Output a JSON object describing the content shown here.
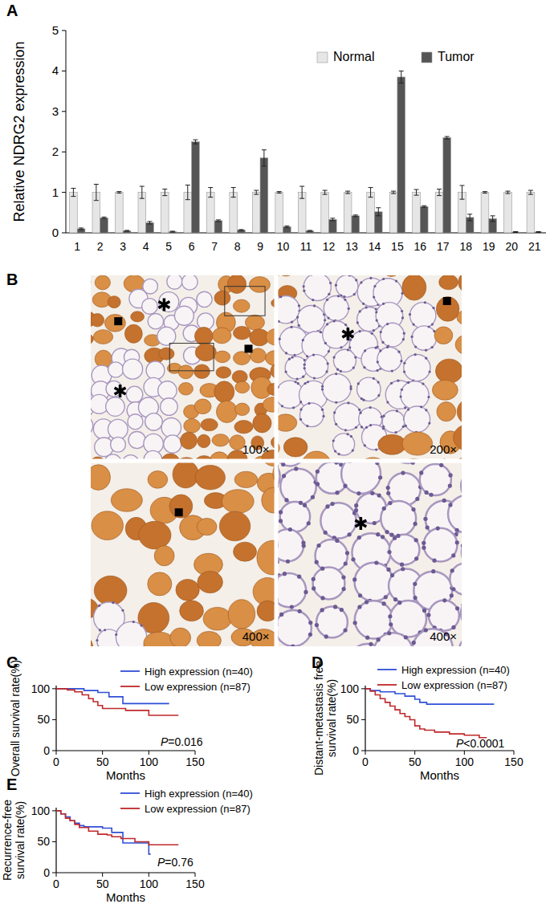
{
  "chart_data": [
    {
      "type": "bar",
      "title": "A",
      "y_label": "Relative NDRG2 expression",
      "categories": [
        "1",
        "2",
        "3",
        "4",
        "5",
        "6",
        "7",
        "8",
        "9",
        "10",
        "11",
        "12",
        "13",
        "14",
        "15",
        "16",
        "17",
        "18",
        "19",
        "20",
        "21"
      ],
      "series": [
        {
          "name": "Normal",
          "color": "#e6e6e6",
          "values": [
            1,
            1,
            1,
            1,
            1,
            1,
            1,
            1,
            1,
            1,
            1,
            1,
            1,
            1,
            1,
            1,
            1,
            1,
            1,
            1,
            1
          ],
          "errors": [
            0.1,
            0.2,
            0.02,
            0.15,
            0.08,
            0.18,
            0.12,
            0.12,
            0.05,
            0.02,
            0.15,
            0.05,
            0.03,
            0.12,
            0.03,
            0.07,
            0.08,
            0.17,
            0.02,
            0.03,
            0.05
          ]
        },
        {
          "name": "Tumor",
          "color": "#555555",
          "values": [
            0.1,
            0.37,
            0.05,
            0.25,
            0.03,
            2.25,
            0.3,
            0.07,
            1.85,
            0.15,
            0.05,
            0.33,
            0.42,
            0.52,
            3.85,
            0.65,
            2.35,
            0.38,
            0.35,
            0.02,
            0.02
          ],
          "errors": [
            0.02,
            0.02,
            0.01,
            0.03,
            0.01,
            0.05,
            0.02,
            0.01,
            0.2,
            0.02,
            0.01,
            0.03,
            0.02,
            0.1,
            0.15,
            0.02,
            0.03,
            0.08,
            0.07,
            0.01,
            0.01
          ]
        }
      ],
      "ylim": [
        0,
        5
      ],
      "yticks": [
        0,
        1,
        2,
        3,
        4,
        5
      ],
      "legend": "top-right",
      "grid": false
    },
    {
      "type": "image",
      "title": "B",
      "labels": [
        "100×",
        "200×",
        "400×",
        "400×"
      ]
    },
    {
      "type": "line",
      "title": "C",
      "x_label": "Months",
      "y_label": "Overall survival rate(%)",
      "xlim": [
        0,
        150
      ],
      "ylim": [
        0,
        105
      ],
      "xticks": [
        0,
        50,
        100,
        150
      ],
      "yticks": [
        0,
        50,
        100
      ],
      "legend": "top-right",
      "line_style": "step",
      "annotations": [
        "P=0.016"
      ],
      "series": [
        {
          "name": "High expression (n=40)",
          "color": "#2f4fd8",
          "x": [
            0,
            30,
            45,
            57,
            72,
            122
          ],
          "values": [
            100,
            97,
            94,
            87,
            76,
            76
          ]
        },
        {
          "name": "Low expression (n=87)",
          "color": "#c0282a",
          "x": [
            0,
            12,
            20,
            28,
            35,
            40,
            45,
            50,
            75,
            100,
            132
          ],
          "values": [
            100,
            98,
            95,
            90,
            84,
            79,
            73,
            68,
            65,
            57,
            57
          ]
        }
      ]
    },
    {
      "type": "line",
      "title": "D",
      "x_label": "Months",
      "y_label": "Distant-metastasis free\nsurvival rate(%)",
      "xlim": [
        0,
        150
      ],
      "ylim": [
        0,
        105
      ],
      "xticks": [
        0,
        50,
        100,
        150
      ],
      "yticks": [
        0,
        50,
        100
      ],
      "legend": "top-right",
      "line_style": "step",
      "annotations": [
        "P<0.0001"
      ],
      "series": [
        {
          "name": "High expression (n=40)",
          "color": "#2f4fd8",
          "x": [
            0,
            5,
            15,
            30,
            40,
            50,
            55,
            62,
            130
          ],
          "values": [
            100,
            97,
            95,
            92,
            88,
            83,
            78,
            75,
            75
          ]
        },
        {
          "name": "Low expression (n=87)",
          "color": "#c0282a",
          "x": [
            0,
            5,
            10,
            15,
            20,
            25,
            30,
            35,
            40,
            45,
            50,
            55,
            60,
            70,
            85,
            100,
            115,
            122
          ],
          "values": [
            100,
            96,
            90,
            84,
            78,
            72,
            66,
            60,
            55,
            50,
            40,
            35,
            33,
            30,
            27,
            25,
            21,
            20
          ]
        }
      ]
    },
    {
      "type": "line",
      "title": "E",
      "x_label": "Months",
      "y_label": "Recurrence-free\nsurvival rate(%)",
      "xlim": [
        0,
        150
      ],
      "ylim": [
        0,
        105
      ],
      "xticks": [
        0,
        50,
        100,
        150
      ],
      "yticks": [
        0,
        50,
        100
      ],
      "legend": "top-right",
      "line_style": "step",
      "annotations": [
        "P=0.76"
      ],
      "series": [
        {
          "name": "High expression (n=40)",
          "color": "#2f4fd8",
          "x": [
            0,
            5,
            10,
            15,
            20,
            25,
            30,
            50,
            60,
            72,
            100,
            102
          ],
          "values": [
            100,
            95,
            90,
            84,
            80,
            76,
            74,
            72,
            65,
            48,
            30,
            30
          ]
        },
        {
          "name": "Low expression (n=87)",
          "color": "#c0282a",
          "x": [
            0,
            5,
            10,
            15,
            20,
            25,
            35,
            45,
            55,
            60,
            70,
            85,
            100,
            132
          ],
          "values": [
            100,
            95,
            88,
            84,
            78,
            73,
            67,
            62,
            61,
            58,
            55,
            50,
            45,
            45
          ]
        }
      ]
    }
  ]
}
